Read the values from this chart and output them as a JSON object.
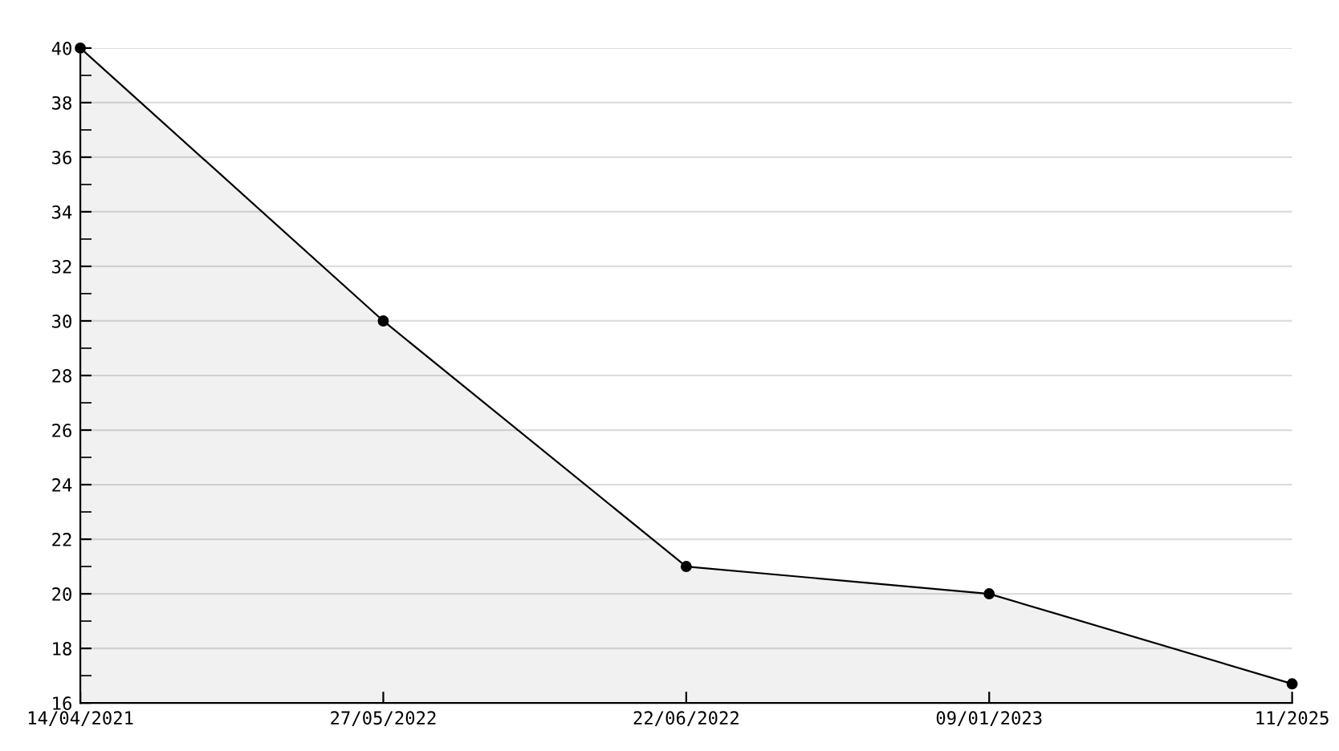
{
  "chart_data": {
    "type": "area",
    "categories": [
      "14/04/2021",
      "27/05/2022",
      "22/06/2022",
      "09/01/2023",
      "11/2025"
    ],
    "series": [
      {
        "color": "#000000",
        "values": [
          40,
          30,
          21,
          20,
          16.7
        ]
      }
    ],
    "ylim": [
      16,
      40
    ],
    "yticks": [
      16,
      18,
      20,
      22,
      24,
      26,
      28,
      30,
      32,
      34,
      36,
      38,
      40
    ],
    "grid": "y",
    "marker": "circle",
    "line_style": "solid",
    "legend": false
  }
}
